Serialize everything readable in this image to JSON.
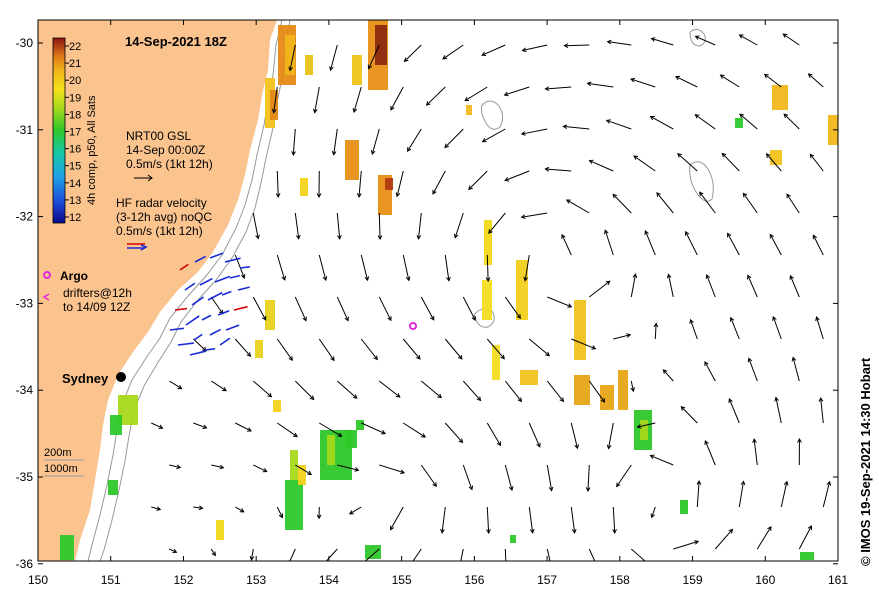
{
  "map": {
    "title": "14-Sep-2021 18Z",
    "credit": "© IMOS 19-Sep-2021 14:30 Hobart",
    "x_ticks": [
      "150",
      "151",
      "152",
      "153",
      "154",
      "155",
      "156",
      "157",
      "158",
      "159",
      "160",
      "161"
    ],
    "y_ticks": [
      "-30",
      "-31",
      "-32",
      "-33",
      "-34",
      "-35",
      "-36"
    ],
    "colors": {
      "land": "#fbc48f",
      "ocean": "#ffffff",
      "isobath": "#999999",
      "argo": "#e22bd8",
      "radar_red": "#d40000",
      "radar_blue": "#1a2bd6"
    }
  },
  "colorbar": {
    "label": "4h comp, p50, All Sats",
    "ticks": [
      "22",
      "21",
      "20",
      "19",
      "18",
      "17",
      "16",
      "15",
      "14",
      "13",
      "12"
    ]
  },
  "legend": {
    "gsl_line1": "NRT00 GSL",
    "gsl_line2": "14-Sep 00:00Z",
    "gsl_line3": "0.5m/s (1kt 12h)",
    "hf_line1": "HF radar velocity",
    "hf_line2": "(3-12h avg) noQC",
    "hf_line3": "0.5m/s (1kt 12h)",
    "argo_label": "Argo",
    "drifters_line1": "drifters@12h",
    "drifters_line2": "to 14/09 12Z",
    "isobath_200": "200m",
    "isobath_1000": "1000m"
  },
  "places": {
    "sydney": "Sydney"
  }
}
